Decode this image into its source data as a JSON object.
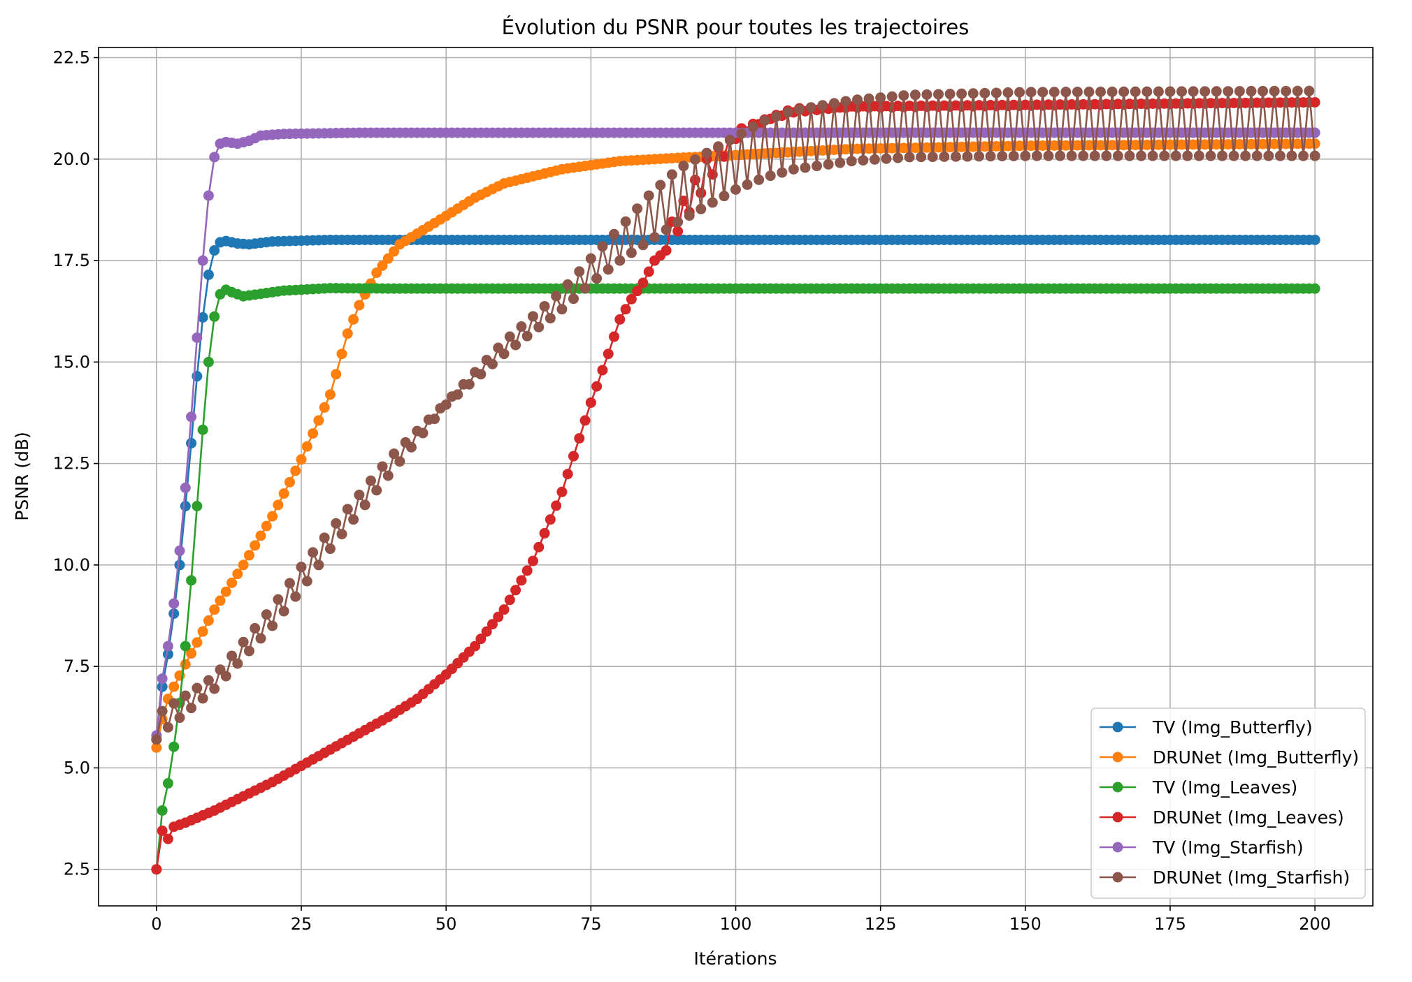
{
  "chart_data": {
    "type": "line",
    "title": "Évolution du PSNR pour toutes les trajectoires",
    "xlabel": "Itérations",
    "ylabel": "PSNR (dB)",
    "xlim": [
      -10,
      210
    ],
    "ylim": [
      1.6,
      22.75
    ],
    "xticks": [
      0,
      25,
      50,
      75,
      100,
      125,
      150,
      175,
      200
    ],
    "yticks": [
      2.5,
      5.0,
      7.5,
      10.0,
      12.5,
      15.0,
      17.5,
      20.0,
      22.5
    ],
    "xtick_labels": [
      "0",
      "25",
      "50",
      "75",
      "100",
      "125",
      "150",
      "175",
      "200"
    ],
    "ytick_labels": [
      "2.5",
      "5.0",
      "7.5",
      "10.0",
      "12.5",
      "15.0",
      "17.5",
      "20.0",
      "22.5"
    ],
    "grid": true,
    "legend_position": "lower right",
    "iterations": [
      0,
      200
    ],
    "series": [
      {
        "name": "TV (Img_Butterfly)",
        "color": "#1f77b4",
        "pattern": "smooth",
        "keypoints": [
          [
            0,
            5.7
          ],
          [
            1,
            7.0
          ],
          [
            2,
            7.8
          ],
          [
            3,
            8.8
          ],
          [
            4,
            10.0
          ],
          [
            5,
            11.45
          ],
          [
            6,
            13.0
          ],
          [
            7,
            14.65
          ],
          [
            8,
            16.1
          ],
          [
            9,
            17.15
          ],
          [
            10,
            17.75
          ],
          [
            11,
            17.95
          ],
          [
            12,
            17.98
          ],
          [
            14,
            17.92
          ],
          [
            16,
            17.9
          ],
          [
            20,
            17.97
          ],
          [
            30,
            18.01
          ],
          [
            200,
            18.01
          ]
        ]
      },
      {
        "name": "DRUNet (Img_Butterfly)",
        "color": "#ff7f0e",
        "pattern": "smooth",
        "keypoints": [
          [
            0,
            5.5
          ],
          [
            1,
            6.2
          ],
          [
            2,
            6.7
          ],
          [
            3,
            7.0
          ],
          [
            5,
            7.55
          ],
          [
            10,
            8.9
          ],
          [
            15,
            10.0
          ],
          [
            20,
            11.2
          ],
          [
            25,
            12.6
          ],
          [
            30,
            14.2
          ],
          [
            33,
            15.7
          ],
          [
            35,
            16.4
          ],
          [
            38,
            17.2
          ],
          [
            42,
            17.9
          ],
          [
            50,
            18.6
          ],
          [
            55,
            19.05
          ],
          [
            60,
            19.4
          ],
          [
            70,
            19.75
          ],
          [
            80,
            19.95
          ],
          [
            90,
            20.03
          ],
          [
            100,
            20.1
          ],
          [
            120,
            20.25
          ],
          [
            150,
            20.33
          ],
          [
            200,
            20.38
          ]
        ]
      },
      {
        "name": "TV (Img_Leaves)",
        "color": "#2ca02c",
        "pattern": "smooth",
        "keypoints": [
          [
            0,
            2.5
          ],
          [
            1,
            3.95
          ],
          [
            2,
            4.62
          ],
          [
            3,
            5.52
          ],
          [
            4,
            6.6
          ],
          [
            5,
            8.0
          ],
          [
            6,
            9.62
          ],
          [
            7,
            11.45
          ],
          [
            8,
            13.33
          ],
          [
            9,
            15.0
          ],
          [
            10,
            16.12
          ],
          [
            11,
            16.67
          ],
          [
            12,
            16.78
          ],
          [
            13,
            16.72
          ],
          [
            15,
            16.62
          ],
          [
            18,
            16.68
          ],
          [
            22,
            16.76
          ],
          [
            30,
            16.82
          ],
          [
            40,
            16.81
          ],
          [
            200,
            16.81
          ]
        ]
      },
      {
        "name": "DRUNet (Img_Leaves)",
        "color": "#d62728",
        "pattern": "leaves_drunet",
        "keypoints": [
          [
            0,
            2.5
          ],
          [
            1,
            3.45
          ],
          [
            2,
            3.25
          ],
          [
            3,
            3.55
          ],
          [
            5,
            3.65
          ],
          [
            10,
            3.95
          ],
          [
            15,
            4.3
          ],
          [
            20,
            4.65
          ],
          [
            25,
            5.05
          ],
          [
            30,
            5.45
          ],
          [
            35,
            5.85
          ],
          [
            40,
            6.25
          ],
          [
            45,
            6.7
          ],
          [
            50,
            7.3
          ],
          [
            55,
            8.0
          ],
          [
            60,
            8.9
          ],
          [
            65,
            10.1
          ],
          [
            70,
            11.8
          ],
          [
            75,
            14.0
          ],
          [
            78,
            15.2
          ],
          [
            80,
            16.05
          ],
          [
            82,
            16.55
          ],
          [
            84,
            16.95
          ],
          [
            86,
            17.5
          ],
          [
            88,
            17.75
          ],
          [
            90,
            18.2
          ],
          [
            95,
            19.4
          ],
          [
            100,
            20.5
          ],
          [
            105,
            20.95
          ],
          [
            110,
            21.15
          ],
          [
            120,
            21.3
          ],
          [
            150,
            21.38
          ],
          [
            200,
            21.4
          ]
        ],
        "osc_start": 88,
        "osc_low": [
          [
            88,
            17.75
          ],
          [
            95,
            19.4
          ],
          [
            100,
            20.5
          ],
          [
            105,
            20.95
          ],
          [
            110,
            21.15
          ],
          [
            120,
            21.3
          ],
          [
            200,
            21.4
          ]
        ],
        "osc_high": [
          [
            88,
            18.2
          ],
          [
            95,
            20.0
          ],
          [
            100,
            20.7
          ],
          [
            110,
            21.25
          ],
          [
            200,
            21.4
          ]
        ]
      },
      {
        "name": "TV (Img_Starfish)",
        "color": "#9467bd",
        "pattern": "smooth",
        "keypoints": [
          [
            0,
            5.8
          ],
          [
            1,
            7.2
          ],
          [
            2,
            8.0
          ],
          [
            3,
            9.05
          ],
          [
            4,
            10.35
          ],
          [
            5,
            11.9
          ],
          [
            6,
            13.65
          ],
          [
            7,
            15.6
          ],
          [
            8,
            17.5
          ],
          [
            9,
            19.1
          ],
          [
            10,
            20.05
          ],
          [
            11,
            20.38
          ],
          [
            12,
            20.42
          ],
          [
            14,
            20.38
          ],
          [
            16,
            20.45
          ],
          [
            18,
            20.58
          ],
          [
            22,
            20.62
          ],
          [
            35,
            20.65
          ],
          [
            200,
            20.65
          ]
        ]
      },
      {
        "name": "DRUNet (Img_Starfish)",
        "color": "#8c564b",
        "pattern": "starfish_drunet",
        "lower": [
          [
            0,
            5.7
          ],
          [
            2,
            6.0
          ],
          [
            10,
            6.95
          ],
          [
            20,
            8.5
          ],
          [
            25,
            9.4
          ],
          [
            30,
            10.4
          ],
          [
            40,
            12.2
          ],
          [
            50,
            13.95
          ],
          [
            60,
            15.2
          ],
          [
            70,
            16.3
          ],
          [
            75,
            16.95
          ],
          [
            80,
            17.5
          ],
          [
            85,
            17.98
          ],
          [
            90,
            18.45
          ],
          [
            95,
            18.85
          ],
          [
            100,
            19.25
          ],
          [
            105,
            19.55
          ],
          [
            110,
            19.75
          ],
          [
            120,
            19.95
          ],
          [
            130,
            20.05
          ],
          [
            150,
            20.08
          ],
          [
            200,
            20.08
          ]
        ],
        "upper": [
          [
            0,
            5.7
          ],
          [
            1,
            6.4
          ],
          [
            10,
            7.25
          ],
          [
            20,
            8.95
          ],
          [
            25,
            9.95
          ],
          [
            30,
            10.85
          ],
          [
            40,
            12.6
          ],
          [
            50,
            14.0
          ],
          [
            60,
            15.5
          ],
          [
            70,
            16.75
          ],
          [
            75,
            17.55
          ],
          [
            80,
            18.3
          ],
          [
            85,
            19.1
          ],
          [
            90,
            19.75
          ],
          [
            95,
            20.15
          ],
          [
            100,
            20.55
          ],
          [
            105,
            20.95
          ],
          [
            110,
            21.2
          ],
          [
            120,
            21.45
          ],
          [
            130,
            21.58
          ],
          [
            150,
            21.65
          ],
          [
            200,
            21.68
          ]
        ]
      }
    ]
  }
}
